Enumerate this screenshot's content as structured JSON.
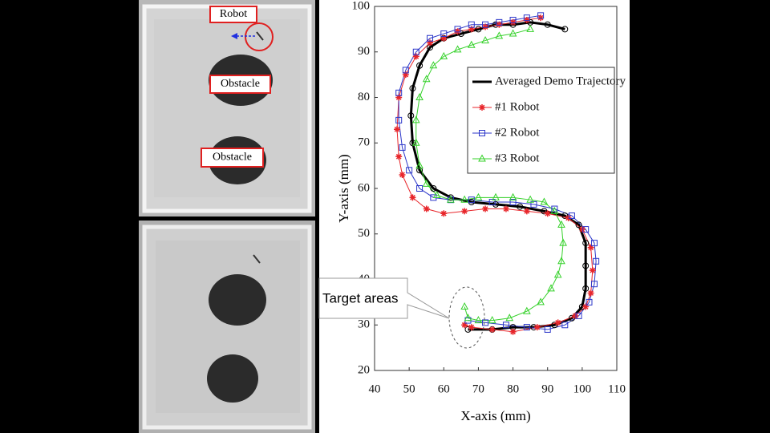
{
  "photo_labels": [
    "Robot",
    "Obstacle",
    "Obstacle"
  ],
  "chart_data": {
    "type": "line",
    "xlabel": "X-axis (mm)",
    "ylabel": "Y-axis (mm)",
    "annotation": "Target areas",
    "xlim": [
      40,
      110
    ],
    "xticks": [
      40,
      50,
      60,
      70,
      80,
      90,
      100,
      110
    ],
    "ylim": [
      20,
      100
    ],
    "yticks": [
      20,
      30,
      40,
      50,
      60,
      70,
      80,
      90,
      100
    ],
    "grid": false,
    "legend": "upper right",
    "series": [
      {
        "name": "Averaged Demo Trajectory",
        "color": "#000000",
        "marker": "circle",
        "line_width": 3,
        "x": [
          95,
          90,
          85,
          80,
          75,
          70,
          65,
          60,
          56,
          53,
          51,
          50.5,
          51,
          53,
          57,
          62,
          68,
          75,
          82,
          89,
          95,
          99,
          101,
          101,
          101,
          100,
          97,
          92,
          86,
          80,
          74,
          67
        ],
        "y": [
          95,
          96,
          96.5,
          96,
          96,
          95,
          94,
          93,
          91,
          87,
          82,
          76,
          70,
          64,
          60,
          58,
          57,
          56.5,
          56,
          55,
          54,
          52,
          48,
          43,
          38,
          34,
          31.5,
          30,
          29.5,
          29.5,
          29,
          29
        ]
      },
      {
        "name": "#1 Robot",
        "color": "#e8262b",
        "marker": "star",
        "line_width": 1,
        "x": [
          88,
          84,
          80,
          76,
          72,
          68,
          64,
          60,
          56,
          52,
          49,
          47,
          46.5,
          47,
          48,
          51,
          55,
          60,
          66,
          72,
          78,
          84,
          90,
          96,
          100,
          102.5,
          103,
          102.5,
          101,
          98,
          93,
          87,
          80,
          74,
          68,
          66
        ],
        "y": [
          97.5,
          97,
          96.5,
          96,
          95.5,
          95,
          94.5,
          93,
          92,
          89,
          85,
          80,
          73,
          67,
          63,
          58,
          55.5,
          54.5,
          55,
          55.5,
          55.5,
          55,
          54.5,
          53.5,
          51,
          47,
          42,
          37,
          34,
          32,
          30.5,
          29.5,
          28.5,
          29,
          29.5,
          30
        ]
      },
      {
        "name": "#2 Robot",
        "color": "#2b36c9",
        "marker": "square",
        "line_width": 1,
        "x": [
          88,
          84,
          80,
          76,
          72,
          68,
          64,
          60,
          56,
          52,
          49,
          47,
          47,
          48,
          50,
          53,
          57,
          62,
          68,
          74,
          80,
          86,
          92,
          97,
          101,
          103.5,
          104,
          103.5,
          102,
          99,
          95,
          90,
          84,
          78,
          72,
          67
        ],
        "y": [
          98,
          97.5,
          97,
          96.5,
          96,
          96,
          95,
          94,
          93,
          90,
          86,
          81,
          75,
          69,
          64,
          60,
          58,
          57.5,
          57.5,
          57,
          57,
          56.5,
          55.5,
          54,
          51,
          48,
          44,
          39,
          35,
          32,
          30,
          29,
          29.5,
          30,
          30.5,
          31
        ]
      },
      {
        "name": "#3 Robot",
        "color": "#35d12a",
        "marker": "triangle",
        "line_width": 1,
        "x": [
          85,
          80,
          76,
          72,
          68,
          64,
          60,
          57,
          55,
          53,
          52,
          52,
          53,
          55,
          58,
          62,
          66,
          70,
          75,
          80,
          85,
          89,
          92,
          94,
          94.5,
          94,
          93,
          91,
          88,
          84,
          79,
          74,
          70,
          67,
          66
        ],
        "y": [
          95,
          94,
          93.5,
          92.5,
          91.5,
          90.5,
          89,
          87,
          84,
          80,
          75,
          70,
          65,
          61,
          58.5,
          57.5,
          57.5,
          58,
          58,
          58,
          57.5,
          57,
          55,
          52,
          48,
          44,
          41,
          38,
          35,
          33,
          31.5,
          31,
          31,
          31.5,
          34
        ]
      }
    ]
  }
}
